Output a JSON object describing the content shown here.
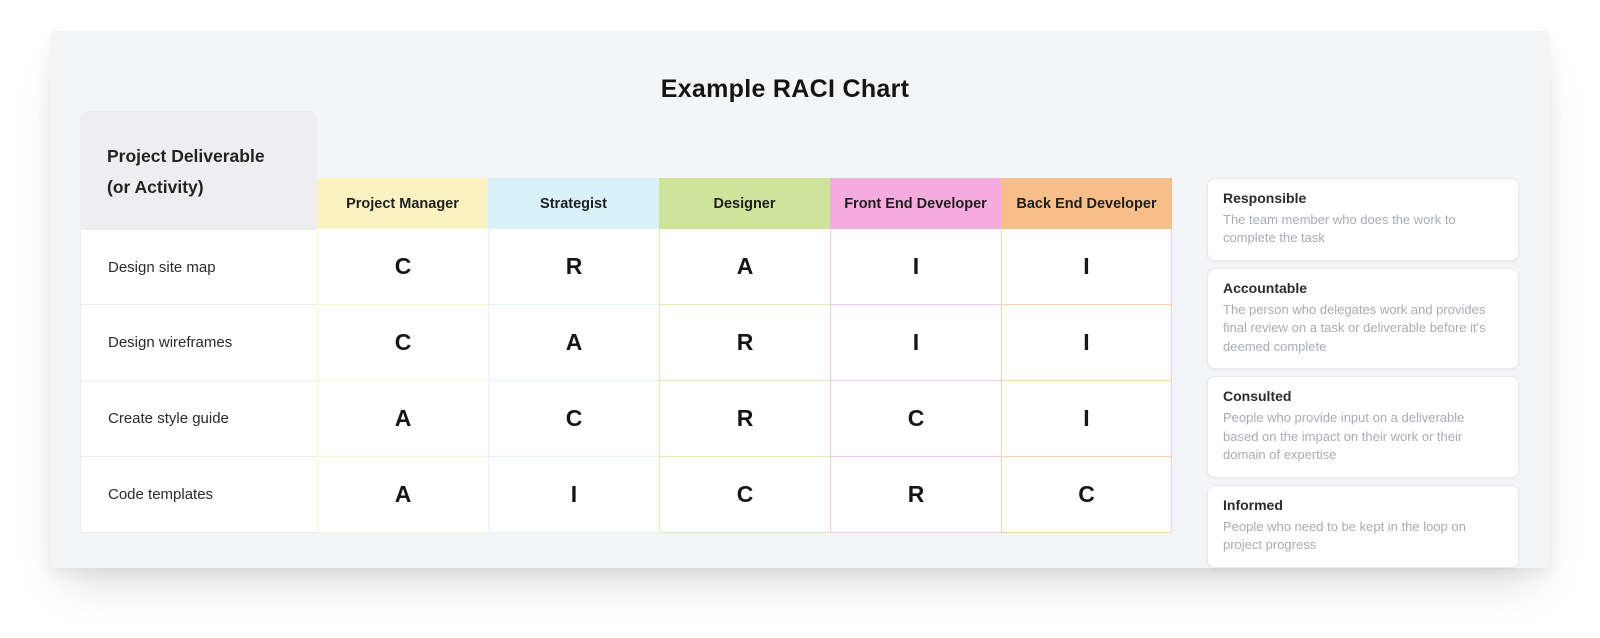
{
  "title": "Example RACI Chart",
  "colors": {
    "page_background": "#ffffff",
    "card_background": "#f4f5f7",
    "corner_box_background": "#eeeef0",
    "label_border": "#ececec"
  },
  "table": {
    "corner_header": {
      "line1": "Project Deliverable",
      "line2": "(or Activity)"
    },
    "columns": [
      {
        "label": "Project Manager",
        "bg": "#faf3c1",
        "border": "#fbf5cf"
      },
      {
        "label": "Strategist",
        "bg": "#d9f1f9",
        "border": "#e3f5fa"
      },
      {
        "label": "Designer",
        "bg": "#cfe49b",
        "border": "#dcedb6"
      },
      {
        "label": "Front End Developer",
        "bg": "#f3acdd",
        "border": "#f7caea"
      },
      {
        "label": "Back End Developer",
        "bg": "#f6be8a",
        "border": "#f9d4ab"
      }
    ],
    "rows": [
      {
        "label": "Design site map",
        "cells": [
          "C",
          "R",
          "A",
          "I",
          "I"
        ]
      },
      {
        "label": "Design wireframes",
        "cells": [
          "C",
          "A",
          "R",
          "I",
          "I"
        ]
      },
      {
        "label": "Create style guide",
        "cells": [
          "A",
          "C",
          "R",
          "C",
          "I"
        ]
      },
      {
        "label": "Code templates",
        "cells": [
          "A",
          "I",
          "C",
          "R",
          "C"
        ]
      }
    ]
  },
  "legend": [
    {
      "title": "Responsible",
      "description": "The team member who does the work to complete the task"
    },
    {
      "title": "Accountable",
      "description": "The person who delegates work and provides final review on a task or deliverable before it's deemed complete"
    },
    {
      "title": "Consulted",
      "description": "People who provide input on a deliverable based on the impact on their work or their domain of expertise"
    },
    {
      "title": "Informed",
      "description": "People who need to be kept in the loop on project progress"
    }
  ],
  "chart_data": {
    "type": "table",
    "title": "Example RACI Chart",
    "row_header": "Project Deliverable (or Activity)",
    "columns": [
      "Project Manager",
      "Strategist",
      "Designer",
      "Front End Developer",
      "Back End Developer"
    ],
    "rows": [
      "Design site map",
      "Design wireframes",
      "Create style guide",
      "Code templates"
    ],
    "values": [
      [
        "C",
        "R",
        "A",
        "I",
        "I"
      ],
      [
        "C",
        "A",
        "R",
        "I",
        "I"
      ],
      [
        "A",
        "C",
        "R",
        "C",
        "I"
      ],
      [
        "A",
        "I",
        "C",
        "R",
        "C"
      ]
    ],
    "legend": {
      "R": "Responsible — The team member who does the work to complete the task",
      "A": "Accountable — The person who delegates work and provides final review on a task or deliverable before it's deemed complete",
      "C": "Consulted — People who provide input on a deliverable based on the impact on their work or their domain of expertise",
      "I": "Informed — People who need to be kept in the loop on project progress"
    },
    "layout": {
      "column_colors": [
        "#faf3c1",
        "#d9f1f9",
        "#cfe49b",
        "#f3acdd",
        "#f6be8a"
      ],
      "legend_position": "right"
    }
  }
}
